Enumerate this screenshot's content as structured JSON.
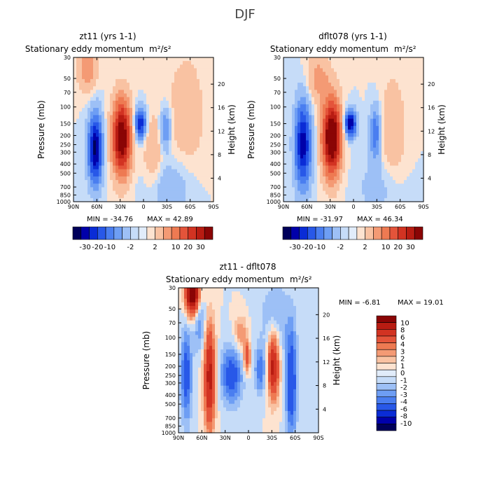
{
  "page": {
    "season_title": "DJF"
  },
  "colors": {
    "neg": [
      "#00005a",
      "#0000aa",
      "#0a2cd6",
      "#2858e8",
      "#4a7ef0",
      "#6e9ef4",
      "#9dc0f6",
      "#c6dcf8",
      "#e1ecfa"
    ],
    "pos": [
      "#fde3d0",
      "#f9c2a2",
      "#f49a74",
      "#ee7a52",
      "#e4543a",
      "#d23322",
      "#b81c12",
      "#8a0505"
    ],
    "axis": "#000000"
  },
  "chart_data": [
    {
      "id": "panel-zt11",
      "type": "contour",
      "title": "zt11 (yrs 1-1)",
      "subtitle": "Stationary eddy momentum",
      "units": "m²/s²",
      "ylabel": "Pressure (mb)",
      "ylabel_right": "Height (km)",
      "x_ticks": [
        "90N",
        "60N",
        "30N",
        "0",
        "30S",
        "60S",
        "90S"
      ],
      "x_lat": [
        90,
        60,
        30,
        0,
        -30,
        -60,
        -90
      ],
      "pressure_ticks": [
        "30",
        "50",
        "70",
        "100",
        "150",
        "200",
        "250",
        "300",
        "400",
        "500",
        "700",
        "850",
        "1000"
      ],
      "pressure_values": [
        30,
        50,
        70,
        100,
        150,
        200,
        250,
        300,
        400,
        500,
        700,
        850,
        1000
      ],
      "height_ticks": [
        "4",
        "8",
        "12",
        "16",
        "20"
      ],
      "height_values": [
        4,
        8,
        12,
        16,
        20
      ],
      "min_label": "MIN = -34.76",
      "max_label": "MAX =  42.89",
      "min": -34.76,
      "max": 42.89,
      "colorbar_labels": [
        "-30",
        "-20",
        "-10",
        "-2",
        "2",
        "10",
        "20",
        "30"
      ],
      "features": [
        {
          "lat": 62,
          "p": 280,
          "amp": -32,
          "wlat": 6,
          "wp": 0.55
        },
        {
          "lat": 28,
          "p": 210,
          "amp": 38,
          "wlat": 8,
          "wp": 0.6
        },
        {
          "lat": 4,
          "p": 150,
          "amp": -24,
          "wlat": 5,
          "wp": 0.25
        },
        {
          "lat": -28,
          "p": 170,
          "amp": -11,
          "wlat": 5,
          "wp": 0.35
        },
        {
          "lat": -12,
          "p": 300,
          "amp": 6,
          "wlat": 8,
          "wp": 0.6
        },
        {
          "lat": 72,
          "p": 40,
          "amp": 10,
          "wlat": 8,
          "wp": 0.35
        },
        {
          "lat": -55,
          "p": 120,
          "amp": 4,
          "wlat": 18,
          "wp": 1.1
        },
        {
          "lat": -35,
          "p": 700,
          "amp": -5,
          "wlat": 20,
          "wp": 0.5
        }
      ]
    },
    {
      "id": "panel-dflt078",
      "type": "contour",
      "title": "dflt078 (yrs 1-1)",
      "subtitle": "Stationary eddy momentum",
      "units": "m²/s²",
      "ylabel": "Pressure (mb)",
      "ylabel_right": "Height (km)",
      "x_ticks": [
        "90N",
        "60N",
        "30N",
        "0",
        "30S",
        "60S",
        "90S"
      ],
      "x_lat": [
        90,
        60,
        30,
        0,
        -30,
        -60,
        -90
      ],
      "pressure_ticks": [
        "30",
        "50",
        "70",
        "100",
        "150",
        "200",
        "250",
        "300",
        "400",
        "500",
        "700",
        "850",
        "1000"
      ],
      "pressure_values": [
        30,
        50,
        70,
        100,
        150,
        200,
        250,
        300,
        400,
        500,
        700,
        850,
        1000
      ],
      "height_ticks": [
        "4",
        "8",
        "12",
        "16",
        "20"
      ],
      "height_values": [
        4,
        8,
        12,
        16,
        20
      ],
      "min_label": "MIN = -31.97",
      "max_label": "MAX =  46.34",
      "min": -31.97,
      "max": 46.34,
      "colorbar_labels": [
        "-30",
        "-20",
        "-10",
        "-2",
        "2",
        "10",
        "20",
        "30"
      ],
      "features": [
        {
          "lat": 65,
          "p": 250,
          "amp": -28,
          "wlat": 7,
          "wp": 0.7
        },
        {
          "lat": 28,
          "p": 210,
          "amp": 42,
          "wlat": 8,
          "wp": 0.6
        },
        {
          "lat": 4,
          "p": 150,
          "amp": -30,
          "wlat": 5,
          "wp": 0.22
        },
        {
          "lat": -28,
          "p": 190,
          "amp": -14,
          "wlat": 5,
          "wp": 0.45
        },
        {
          "lat": -50,
          "p": 200,
          "amp": 5,
          "wlat": 12,
          "wp": 1.0
        },
        {
          "lat": 45,
          "p": 50,
          "amp": 8,
          "wlat": 10,
          "wp": 0.4
        },
        {
          "lat": -35,
          "p": 700,
          "amp": -4,
          "wlat": 20,
          "wp": 0.5
        }
      ]
    },
    {
      "id": "panel-diff",
      "type": "contour",
      "title": "zt11 - dflt078",
      "subtitle": "Stationary eddy momentum",
      "units": "m²/s²",
      "ylabel": "Pressure (mb)",
      "ylabel_right": "Height (km)",
      "x_ticks": [
        "90N",
        "60N",
        "30N",
        "0",
        "30S",
        "60S",
        "90S"
      ],
      "x_lat": [
        90,
        60,
        30,
        0,
        -30,
        -60,
        -90
      ],
      "pressure_ticks": [
        "30",
        "50",
        "70",
        "100",
        "150",
        "200",
        "250",
        "300",
        "400",
        "500",
        "700",
        "850",
        "1000"
      ],
      "pressure_values": [
        30,
        50,
        70,
        100,
        150,
        200,
        250,
        300,
        400,
        500,
        700,
        850,
        1000
      ],
      "height_ticks": [
        "4",
        "8",
        "12",
        "16",
        "20"
      ],
      "height_values": [
        4,
        8,
        12,
        16,
        20
      ],
      "min_label": "MIN =   -6.81",
      "max_label": "MAX =  19.01",
      "min": -6.81,
      "max": 19.01,
      "colorbar_labels": [
        "10",
        "8",
        "6",
        "4",
        "3",
        "2",
        "1",
        "0",
        "-1",
        "-2",
        "-3",
        "-4",
        "-6",
        "-8",
        "-10"
      ],
      "features": [
        {
          "lat": 72,
          "p": 35,
          "amp": 14,
          "wlat": 6,
          "wp": 0.35
        },
        {
          "lat": 80,
          "p": 250,
          "amp": -5,
          "wlat": 5,
          "wp": 0.8
        },
        {
          "lat": 50,
          "p": 260,
          "amp": 9,
          "wlat": 5,
          "wp": 0.9
        },
        {
          "lat": 63,
          "p": 70,
          "amp": -3,
          "wlat": 6,
          "wp": 0.5
        },
        {
          "lat": 22,
          "p": 250,
          "amp": -5,
          "wlat": 10,
          "wp": 0.5
        },
        {
          "lat": 2,
          "p": 160,
          "amp": 6,
          "wlat": 3,
          "wp": 0.25
        },
        {
          "lat": -15,
          "p": 220,
          "amp": -4,
          "wlat": 5,
          "wp": 0.4
        },
        {
          "lat": -32,
          "p": 200,
          "amp": 9,
          "wlat": 5,
          "wp": 0.55
        },
        {
          "lat": -55,
          "p": 300,
          "amp": -6,
          "wlat": 5,
          "wp": 0.9
        },
        {
          "lat": -35,
          "p": 60,
          "amp": -2,
          "wlat": 15,
          "wp": 0.6
        },
        {
          "lat": 10,
          "p": 90,
          "amp": 3,
          "wlat": 6,
          "wp": 0.3
        }
      ]
    }
  ]
}
